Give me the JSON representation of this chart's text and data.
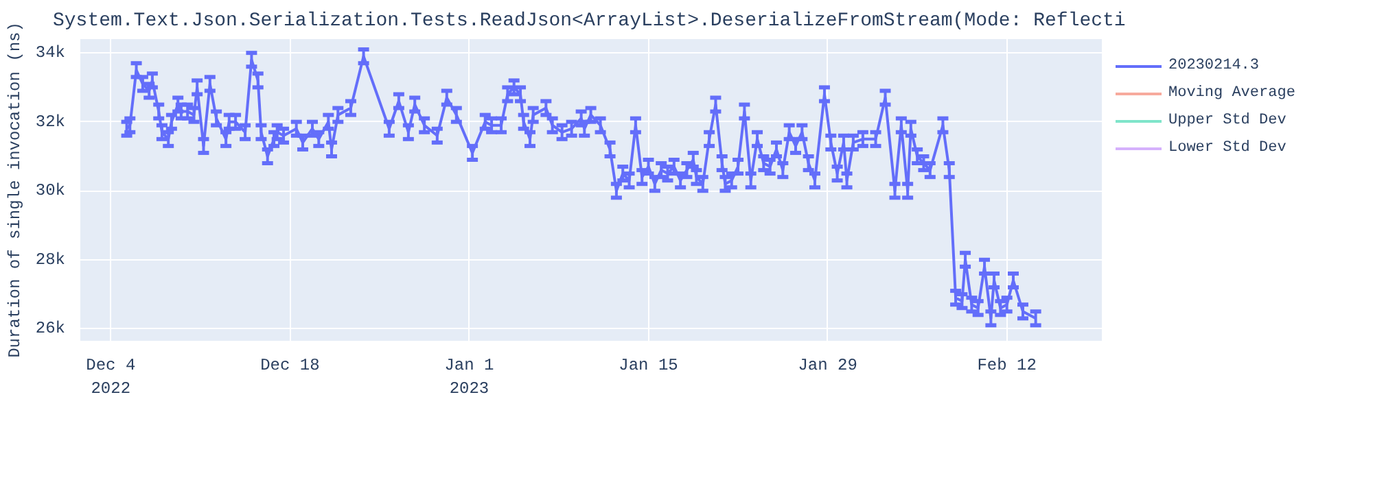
{
  "chart_data": {
    "type": "line",
    "title": "System.Text.Json.Serialization.Tests.ReadJson<ArrayList>.DeserializeFromStream(Mode: Reflecti",
    "ylabel": "Duration of single invocation (ns)",
    "x": [
      "2022-12-05T06:00",
      "2022-12-05T12:00",
      "2022-12-06T00:00",
      "2022-12-06T12:00",
      "2022-12-07T00:00",
      "2022-12-07T06:00",
      "2022-12-07T18:00",
      "2022-12-08T00:00",
      "2022-12-08T12:00",
      "2022-12-08T18:00",
      "2022-12-09T06:00",
      "2022-12-09T12:00",
      "2022-12-10T00:00",
      "2022-12-10T12:00",
      "2022-12-10T18:00",
      "2022-12-11T06:00",
      "2022-12-11T18:00",
      "2022-12-12T06:00",
      "2022-12-13T00:00",
      "2022-12-13T06:00",
      "2022-12-13T18:00",
      "2022-12-14T12:00",
      "2022-12-15T00:00",
      "2022-12-15T12:00",
      "2022-12-15T18:00",
      "2022-12-16T06:00",
      "2022-12-16T18:00",
      "2022-12-17T00:00",
      "2022-12-17T12:00",
      "2022-12-18T12:00",
      "2022-12-19T00:00",
      "2022-12-19T18:00",
      "2022-12-20T06:00",
      "2022-12-21T00:00",
      "2022-12-21T06:00",
      "2022-12-21T18:00",
      "2022-12-22T18:00",
      "2022-12-23T18:00",
      "2022-12-25T18:00",
      "2022-12-26T12:00",
      "2022-12-27T06:00",
      "2022-12-27T18:00",
      "2022-12-28T12:00",
      "2022-12-29T12:00",
      "2022-12-30T06:00",
      "2022-12-31T00:00",
      "2023-01-01T06:00",
      "2023-01-02T06:00",
      "2023-01-02T18:00",
      "2023-01-03T12:00",
      "2023-01-04T00:00",
      "2023-01-04T12:00",
      "2023-01-05T00:00",
      "2023-01-05T06:00",
      "2023-01-05T18:00",
      "2023-01-06T00:00",
      "2023-01-07T00:00",
      "2023-01-07T12:00",
      "2023-01-08T06:00",
      "2023-01-09T00:00",
      "2023-01-09T18:00",
      "2023-01-10T00:00",
      "2023-01-10T12:00",
      "2023-01-11T06:00",
      "2023-01-12T00:00",
      "2023-01-12T12:00",
      "2023-01-13T00:00",
      "2023-01-13T12:00",
      "2023-01-14T00:00",
      "2023-01-14T12:00",
      "2023-01-15T00:00",
      "2023-01-15T12:00",
      "2023-01-16T00:00",
      "2023-01-16T12:00",
      "2023-01-17T00:00",
      "2023-01-17T12:00",
      "2023-01-18T00:00",
      "2023-01-18T12:00",
      "2023-01-18T18:00",
      "2023-01-19T06:00",
      "2023-01-19T18:00",
      "2023-01-20T06:00",
      "2023-01-20T18:00",
      "2023-01-21T00:00",
      "2023-01-21T12:00",
      "2023-01-22T00:00",
      "2023-01-22T12:00",
      "2023-01-23T00:00",
      "2023-01-23T12:00",
      "2023-01-24T00:00",
      "2023-01-24T12:00",
      "2023-01-25T00:00",
      "2023-01-25T12:00",
      "2023-01-26T00:00",
      "2023-01-26T12:00",
      "2023-01-27T00:00",
      "2023-01-27T12:00",
      "2023-01-28T00:00",
      "2023-01-28T18:00",
      "2023-01-29T06:00",
      "2023-01-29T18:00",
      "2023-01-30T06:00",
      "2023-01-30T12:00",
      "2023-01-31T00:00",
      "2023-01-31T18:00",
      "2023-02-01T18:00",
      "2023-02-02T12:00",
      "2023-02-03T06:00",
      "2023-02-03T18:00",
      "2023-02-04T06:00",
      "2023-02-04T12:00",
      "2023-02-05T00:00",
      "2023-02-05T12:00",
      "2023-02-06T00:00",
      "2023-02-07T00:00",
      "2023-02-07T12:00",
      "2023-02-08T00:00",
      "2023-02-08T12:00",
      "2023-02-08T18:00",
      "2023-02-09T06:00",
      "2023-02-09T18:00",
      "2023-02-10T06:00",
      "2023-02-10T18:00",
      "2023-02-11T00:00",
      "2023-02-11T12:00",
      "2023-02-12T00:00",
      "2023-02-12T12:00",
      "2023-02-13T06:00",
      "2023-02-14T06:00"
    ],
    "series": [
      {
        "name": "20230214.3",
        "color": "#636efa",
        "values": [
          31800,
          31900,
          33500,
          33100,
          32900,
          33200,
          32300,
          31700,
          31500,
          32000,
          32500,
          32300,
          32300,
          32200,
          33000,
          31300,
          33100,
          32100,
          31500,
          32000,
          32000,
          31700,
          33800,
          33200,
          31700,
          31000,
          31500,
          31700,
          31600,
          31800,
          31400,
          31800,
          31500,
          32000,
          31200,
          32200,
          32400,
          33900,
          31800,
          32600,
          31700,
          32500,
          31900,
          31600,
          32700,
          32200,
          31100,
          32000,
          31900,
          31900,
          32800,
          33000,
          32800,
          32000,
          31500,
          32200,
          32400,
          31900,
          31700,
          31800,
          32100,
          31800,
          32200,
          31900,
          31200,
          30000,
          30500,
          30300,
          31900,
          30400,
          30700,
          30200,
          30600,
          30500,
          30700,
          30300,
          30600,
          30900,
          30400,
          30200,
          31500,
          32500,
          30800,
          30200,
          30300,
          30700,
          32300,
          30300,
          31500,
          30800,
          30700,
          31200,
          30600,
          31700,
          31300,
          31700,
          30800,
          30300,
          32800,
          31400,
          30500,
          31400,
          30300,
          31400,
          31500,
          31500,
          32700,
          30000,
          31900,
          30000,
          31800,
          31000,
          30800,
          30600,
          31900,
          30600,
          26900,
          26800,
          28000,
          26700,
          26600,
          27800,
          26300,
          27400,
          26600,
          26700,
          27400,
          26500,
          26300
        ],
        "errors": [
          200,
          200,
          200,
          200,
          200,
          200,
          200,
          200,
          200,
          200,
          200,
          200,
          200,
          200,
          200,
          200,
          200,
          200,
          200,
          200,
          200,
          200,
          200,
          200,
          200,
          200,
          200,
          200,
          200,
          200,
          200,
          200,
          200,
          200,
          200,
          200,
          200,
          200,
          200,
          200,
          200,
          200,
          200,
          200,
          200,
          200,
          200,
          200,
          200,
          200,
          200,
          200,
          200,
          200,
          200,
          200,
          200,
          200,
          200,
          200,
          200,
          200,
          200,
          200,
          200,
          200,
          200,
          200,
          200,
          200,
          200,
          200,
          200,
          200,
          200,
          200,
          200,
          200,
          200,
          200,
          200,
          200,
          200,
          200,
          200,
          200,
          200,
          200,
          200,
          200,
          200,
          200,
          200,
          200,
          200,
          200,
          200,
          200,
          200,
          200,
          200,
          200,
          200,
          200,
          200,
          200,
          200,
          200,
          200,
          200,
          200,
          200,
          200,
          200,
          200,
          200,
          200,
          200,
          200,
          200,
          200,
          200,
          200,
          200,
          200,
          200,
          200,
          200,
          200
        ]
      },
      {
        "name": "Moving Average",
        "color": "#ef553b",
        "values": [
          null,
          null,
          null,
          null,
          null,
          null,
          null,
          null,
          null,
          null,
          null,
          null,
          null,
          null,
          null,
          null,
          null,
          null,
          null,
          null,
          null,
          null,
          null,
          null,
          null,
          null,
          null,
          null,
          null,
          null,
          null,
          null,
          null,
          null,
          null,
          null,
          null,
          null,
          null,
          null,
          null,
          null,
          null,
          null,
          null,
          null,
          null,
          null,
          null,
          null,
          null,
          null,
          null,
          null,
          null,
          null,
          null,
          null,
          null,
          null,
          null,
          null,
          null,
          null,
          null,
          null,
          null,
          null,
          null,
          null,
          null,
          null,
          null,
          null,
          null,
          null,
          null,
          null,
          null,
          null,
          null,
          null,
          null,
          null,
          null,
          null,
          null,
          null,
          null,
          null,
          null,
          null,
          null,
          null,
          null,
          null,
          null,
          null,
          null,
          null,
          null,
          null,
          null,
          null,
          null,
          null,
          null,
          null,
          null,
          null,
          null,
          null,
          null,
          null,
          null,
          null,
          null,
          null,
          null,
          null,
          null,
          null,
          null,
          null,
          null,
          null,
          null,
          null,
          null
        ]
      },
      {
        "name": "Upper Std Dev",
        "color": "#00cc96",
        "values": [
          null,
          null,
          null,
          null,
          null,
          null,
          null,
          null,
          null,
          null,
          null,
          null,
          null,
          null,
          null,
          null,
          null,
          null,
          null,
          null,
          null,
          null,
          null,
          null,
          null,
          null,
          null,
          null,
          null,
          null,
          null,
          null,
          null,
          null,
          null,
          null,
          null,
          null,
          null,
          null,
          null,
          null,
          null,
          null,
          null,
          null,
          null,
          null,
          null,
          null,
          null,
          null,
          null,
          null,
          null,
          null,
          null,
          null,
          null,
          null,
          null,
          null,
          null,
          null,
          null,
          null,
          null,
          null,
          null,
          null,
          null,
          null,
          null,
          null,
          null,
          null,
          null,
          null,
          null,
          null,
          null,
          null,
          null,
          null,
          null,
          null,
          null,
          null,
          null,
          null,
          null,
          null,
          null,
          null,
          null,
          null,
          null,
          null,
          null,
          null,
          null,
          null,
          null,
          null,
          null,
          null,
          null,
          null,
          null,
          null,
          null,
          null,
          null,
          null,
          null,
          null,
          null,
          null,
          null,
          null,
          null,
          null,
          null,
          null,
          null,
          null,
          null,
          null,
          null
        ]
      },
      {
        "name": "Lower Std Dev",
        "color": "#ab63fa",
        "values": [
          null,
          null,
          null,
          null,
          null,
          null,
          null,
          null,
          null,
          null,
          null,
          null,
          null,
          null,
          null,
          null,
          null,
          null,
          null,
          null,
          null,
          null,
          null,
          null,
          null,
          null,
          null,
          null,
          null,
          null,
          null,
          null,
          null,
          null,
          null,
          null,
          null,
          null,
          null,
          null,
          null,
          null,
          null,
          null,
          null,
          null,
          null,
          null,
          null,
          null,
          null,
          null,
          null,
          null,
          null,
          null,
          null,
          null,
          null,
          null,
          null,
          null,
          null,
          null,
          null,
          null,
          null,
          null,
          null,
          null,
          null,
          null,
          null,
          null,
          null,
          null,
          null,
          null,
          null,
          null,
          null,
          null,
          null,
          null,
          null,
          null,
          null,
          null,
          null,
          null,
          null,
          null,
          null,
          null,
          null,
          null,
          null,
          null,
          null,
          null,
          null,
          null,
          null,
          null,
          null,
          null,
          null,
          null,
          null,
          null,
          null,
          null,
          null,
          null,
          null,
          null,
          null,
          null,
          null,
          null,
          null,
          null,
          null,
          null,
          null,
          null,
          null,
          null,
          null
        ]
      }
    ],
    "xlim": [
      "2022-12-01T15:00",
      "2023-02-19T10:00"
    ],
    "xticks": [
      {
        "value": "2022-12-04",
        "label": "Dec 4\n2022"
      },
      {
        "value": "2022-12-18",
        "label": "Dec 18"
      },
      {
        "value": "2023-01-01",
        "label": "Jan 1\n2023"
      },
      {
        "value": "2023-01-15",
        "label": "Jan 15"
      },
      {
        "value": "2023-01-29",
        "label": "Jan 29"
      },
      {
        "value": "2023-02-12",
        "label": "Feb 12"
      }
    ],
    "ylim": [
      25650,
      34400
    ],
    "yticks": [
      {
        "value": 26000,
        "label": "26k"
      },
      {
        "value": 28000,
        "label": "28k"
      },
      {
        "value": 30000,
        "label": "30k"
      },
      {
        "value": 32000,
        "label": "32k"
      },
      {
        "value": 34000,
        "label": "34k"
      }
    ],
    "grid": true,
    "legend": "right",
    "line_style": "solid",
    "marker": "none"
  }
}
